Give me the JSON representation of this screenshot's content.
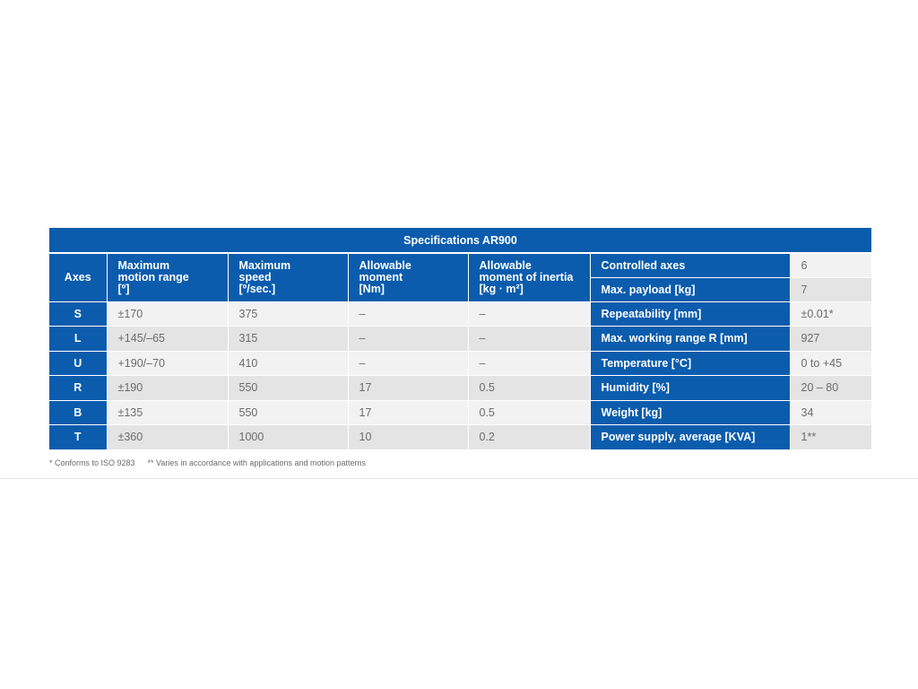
{
  "title": "Specifications AR900",
  "headers": {
    "axes": [
      "Axes"
    ],
    "motion_range": [
      "Maximum",
      "motion range",
      "[º]"
    ],
    "speed": [
      "Maximum",
      "speed",
      "[º/sec.]"
    ],
    "moment": [
      "Allowable",
      "moment",
      "[Nm]"
    ],
    "inertia": [
      "Allowable",
      "moment of inertia",
      "[kg · m²]"
    ]
  },
  "rows": [
    {
      "axis": "S",
      "range": "±170",
      "speed": "375",
      "moment": "–",
      "inertia": "–"
    },
    {
      "axis": "L",
      "range": "+145/–65",
      "speed": "315",
      "moment": "–",
      "inertia": "–"
    },
    {
      "axis": "U",
      "range": "+190/–70",
      "speed": "410",
      "moment": "–",
      "inertia": "–"
    },
    {
      "axis": "R",
      "range": "±190",
      "speed": "550",
      "moment": "17",
      "inertia": "0.5"
    },
    {
      "axis": "B",
      "range": "±135",
      "speed": "550",
      "moment": "17",
      "inertia": "0.5"
    },
    {
      "axis": "T",
      "range": "±360",
      "speed": "1000",
      "moment": "10",
      "inertia": "0.2"
    }
  ],
  "properties": [
    {
      "label": "Controlled axes",
      "value": "6"
    },
    {
      "label": "Max. payload [kg]",
      "value": "7"
    },
    {
      "label": "Repeatability [mm]",
      "value": "±0.01*"
    },
    {
      "label": "Max. working range R [mm]",
      "value": "927"
    },
    {
      "label": "Temperature [°C]",
      "value": "0 to +45"
    },
    {
      "label": "Humidity [%]",
      "value": "20 – 80"
    },
    {
      "label": "Weight [kg]",
      "value": "34"
    },
    {
      "label": "Power supply, average [KVA]",
      "value": "1**"
    }
  ],
  "footnotes": [
    "* Conforms to ISO 9283",
    "** Varies in accordance with applications and motion patterns"
  ],
  "colors": {
    "header_blue": "#0b5cad",
    "row_light": "#f2f2f2",
    "row_dark": "#e4e4e4",
    "value_text": "#6b6b6b"
  }
}
